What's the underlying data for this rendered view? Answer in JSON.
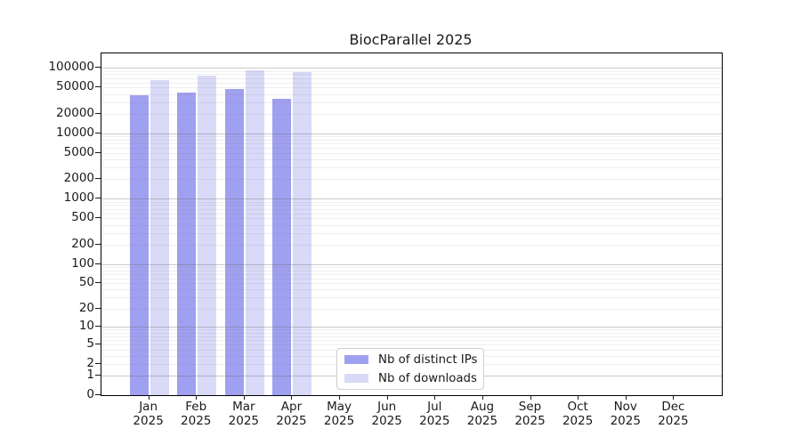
{
  "chart_data": {
    "type": "bar",
    "title": "BiocParallel 2025",
    "year": "2025",
    "categories": [
      "Jan",
      "Feb",
      "Mar",
      "Apr",
      "May",
      "Jun",
      "Jul",
      "Aug",
      "Sep",
      "Oct",
      "Nov",
      "Dec"
    ],
    "series": [
      {
        "name": "Nb of distinct IPs",
        "color": "#a0a0f0",
        "values": [
          38000,
          42000,
          47000,
          34000,
          null,
          null,
          null,
          null,
          null,
          null,
          null,
          null
        ]
      },
      {
        "name": "Nb of downloads",
        "color": "#d9d9f8",
        "values": [
          66000,
          77000,
          92000,
          85000,
          null,
          null,
          null,
          null,
          null,
          null,
          null,
          null
        ]
      }
    ],
    "y_ticks": [
      0,
      1,
      2,
      5,
      10,
      20,
      50,
      100,
      200,
      500,
      1000,
      2000,
      5000,
      10000,
      20000,
      50000,
      100000
    ],
    "y_scale": "log10(1+x)",
    "ylim": [
      0,
      100000
    ],
    "xlabel": "",
    "ylabel": "",
    "grid": "horizontal, log minor and major lines drawn over bars",
    "legend_position": "inside bottom-center-left"
  }
}
